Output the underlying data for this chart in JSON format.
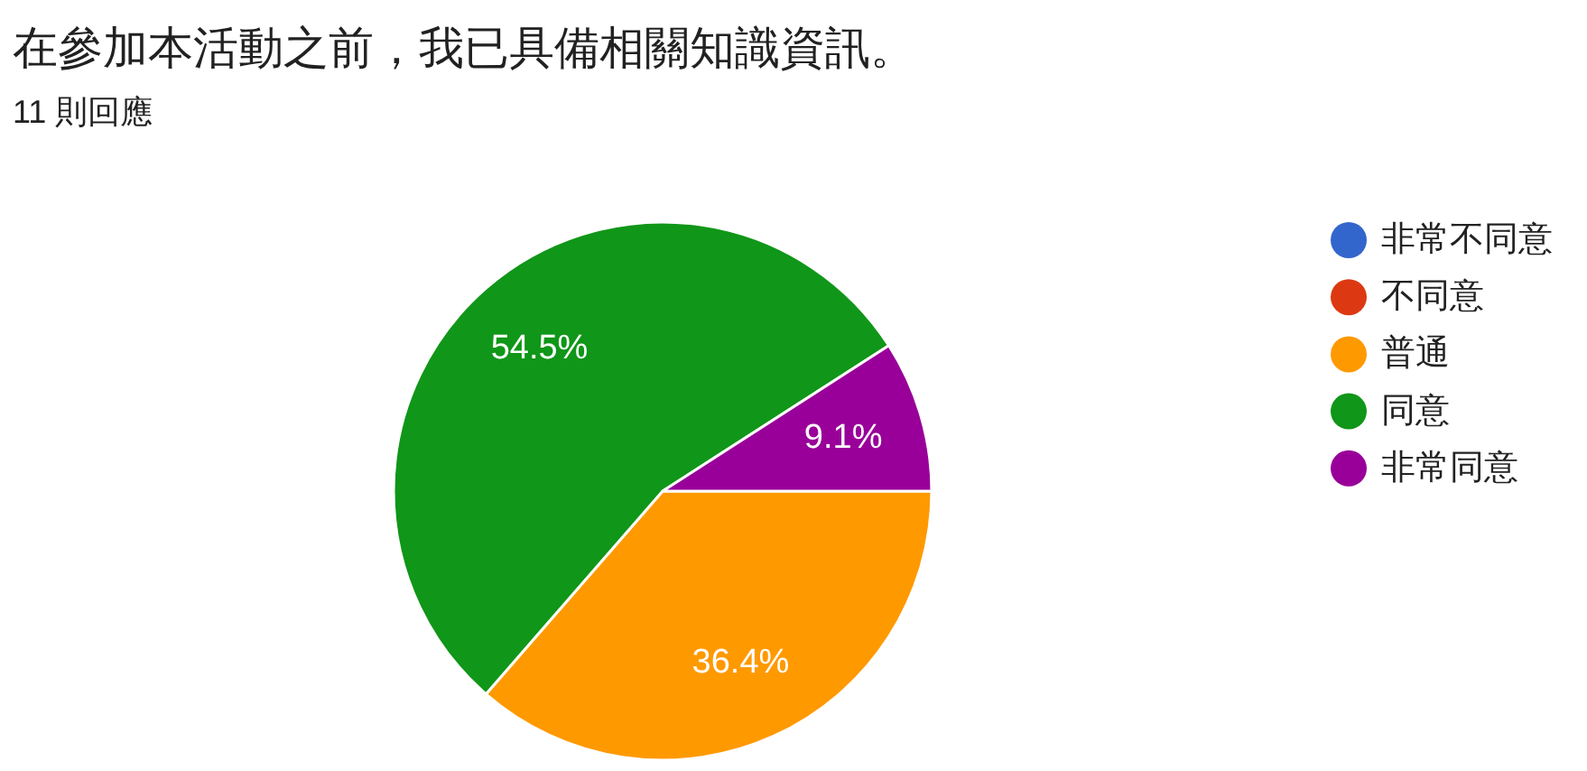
{
  "chart_data": {
    "type": "pie",
    "title": "在參加本活動之前，我已具備相關知識資訊。",
    "subtitle": "11 則回應",
    "categories": [
      "非常不同意",
      "不同意",
      "普通",
      "同意",
      "非常同意"
    ],
    "values": [
      0,
      0,
      36.4,
      54.5,
      9.1
    ],
    "colors": [
      "#3366cc",
      "#dc3912",
      "#ff9900",
      "#109618",
      "#990099"
    ],
    "value_labels": [
      null,
      null,
      "36.4%",
      "54.5%",
      "9.1%"
    ],
    "legend": "right"
  }
}
